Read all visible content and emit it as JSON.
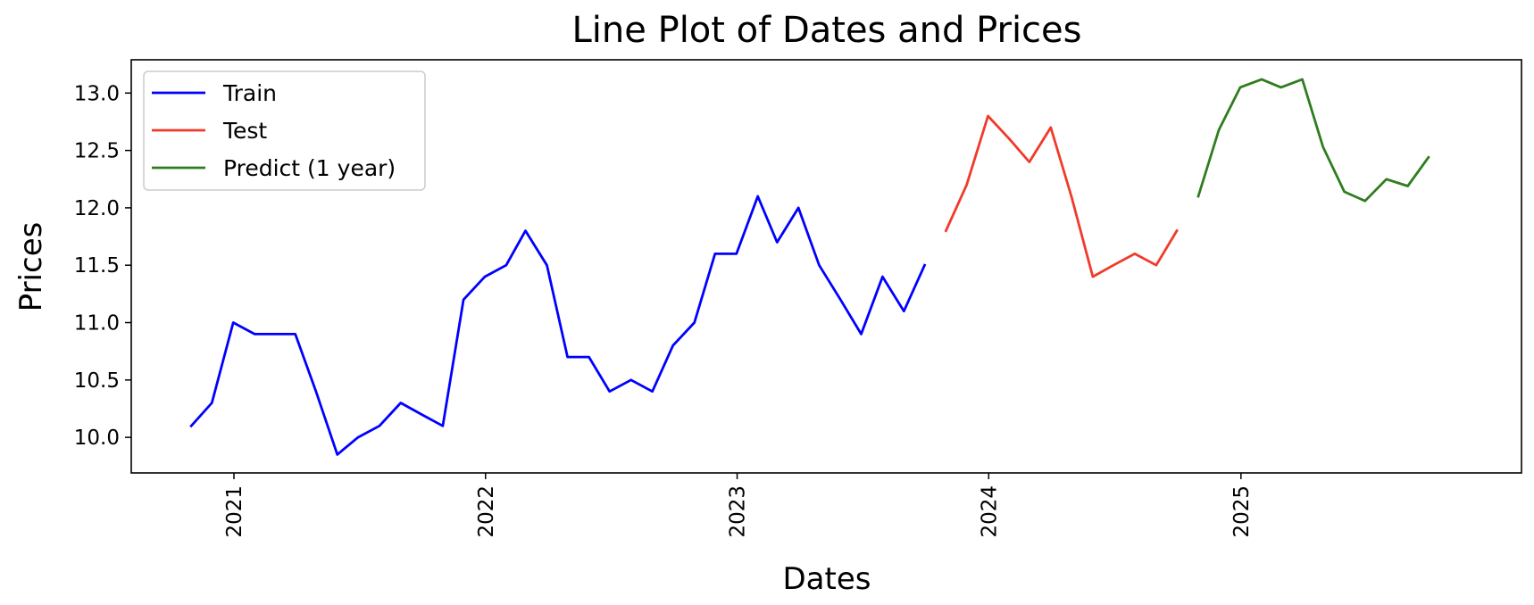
{
  "chart_data": {
    "type": "line",
    "title": "Line Plot of Dates and Prices",
    "xlabel": "Dates",
    "ylabel": "Prices",
    "xlim": [
      "2020-08-05",
      "2026-02-12"
    ],
    "ylim": [
      9.69,
      13.29
    ],
    "grid": false,
    "legend_position": "top-left",
    "x_ticks": [
      {
        "date": "2021-01-01",
        "label": "2021"
      },
      {
        "date": "2022-01-01",
        "label": "2022"
      },
      {
        "date": "2023-01-01",
        "label": "2023"
      },
      {
        "date": "2024-01-01",
        "label": "2024"
      },
      {
        "date": "2025-01-01",
        "label": "2025"
      }
    ],
    "y_ticks": [
      {
        "value": 10.0,
        "label": "10.0"
      },
      {
        "value": 10.5,
        "label": "10.5"
      },
      {
        "value": 11.0,
        "label": "11.0"
      },
      {
        "value": 11.5,
        "label": "11.5"
      },
      {
        "value": 12.0,
        "label": "12.0"
      },
      {
        "value": 12.5,
        "label": "12.5"
      },
      {
        "value": 13.0,
        "label": "13.0"
      }
    ],
    "series": [
      {
        "name": "Train",
        "color": "#0000ff",
        "points": [
          [
            "2020-10-31",
            10.1
          ],
          [
            "2020-11-30",
            10.3
          ],
          [
            "2020-12-31",
            11.0
          ],
          [
            "2021-01-31",
            10.9
          ],
          [
            "2021-02-28",
            10.9
          ],
          [
            "2021-03-31",
            10.9
          ],
          [
            "2021-04-30",
            10.4
          ],
          [
            "2021-05-31",
            9.85
          ],
          [
            "2021-06-30",
            10.0
          ],
          [
            "2021-07-31",
            10.1
          ],
          [
            "2021-08-31",
            10.3
          ],
          [
            "2021-09-30",
            10.2
          ],
          [
            "2021-10-31",
            10.1
          ],
          [
            "2021-11-30",
            11.2
          ],
          [
            "2021-12-31",
            11.4
          ],
          [
            "2022-01-31",
            11.5
          ],
          [
            "2022-02-28",
            11.8
          ],
          [
            "2022-03-31",
            11.5
          ],
          [
            "2022-04-30",
            10.7
          ],
          [
            "2022-05-31",
            10.7
          ],
          [
            "2022-06-30",
            10.4
          ],
          [
            "2022-07-31",
            10.5
          ],
          [
            "2022-08-31",
            10.4
          ],
          [
            "2022-09-30",
            10.8
          ],
          [
            "2022-10-31",
            11.0
          ],
          [
            "2022-11-30",
            11.6
          ],
          [
            "2022-12-31",
            11.6
          ],
          [
            "2023-01-31",
            12.1
          ],
          [
            "2023-02-28",
            11.7
          ],
          [
            "2023-03-31",
            12.0
          ],
          [
            "2023-04-30",
            11.5
          ],
          [
            "2023-05-31",
            11.2
          ],
          [
            "2023-06-30",
            10.9
          ],
          [
            "2023-07-31",
            11.4
          ],
          [
            "2023-08-31",
            11.1
          ],
          [
            "2023-09-30",
            11.5
          ]
        ]
      },
      {
        "name": "Test",
        "color": "#f03a2a",
        "points": [
          [
            "2023-10-31",
            11.8
          ],
          [
            "2023-11-30",
            12.2
          ],
          [
            "2023-12-31",
            12.8
          ],
          [
            "2024-01-31",
            12.6
          ],
          [
            "2024-02-29",
            12.4
          ],
          [
            "2024-03-31",
            12.7
          ],
          [
            "2024-04-30",
            12.1
          ],
          [
            "2024-05-31",
            11.4
          ],
          [
            "2024-06-30",
            11.5
          ],
          [
            "2024-07-31",
            11.6
          ],
          [
            "2024-08-31",
            11.5
          ],
          [
            "2024-09-30",
            11.8
          ]
        ]
      },
      {
        "name": "Predict (1 year)",
        "color": "#2f7d1e",
        "points": [
          [
            "2024-10-31",
            12.1
          ],
          [
            "2024-11-30",
            12.68
          ],
          [
            "2024-12-31",
            13.05
          ],
          [
            "2025-01-31",
            13.12
          ],
          [
            "2025-02-28",
            13.05
          ],
          [
            "2025-03-31",
            13.12
          ],
          [
            "2025-04-30",
            12.53
          ],
          [
            "2025-05-31",
            12.14
          ],
          [
            "2025-06-30",
            12.06
          ],
          [
            "2025-07-31",
            12.25
          ],
          [
            "2025-08-31",
            12.19
          ],
          [
            "2025-09-30",
            12.44
          ]
        ]
      }
    ]
  }
}
